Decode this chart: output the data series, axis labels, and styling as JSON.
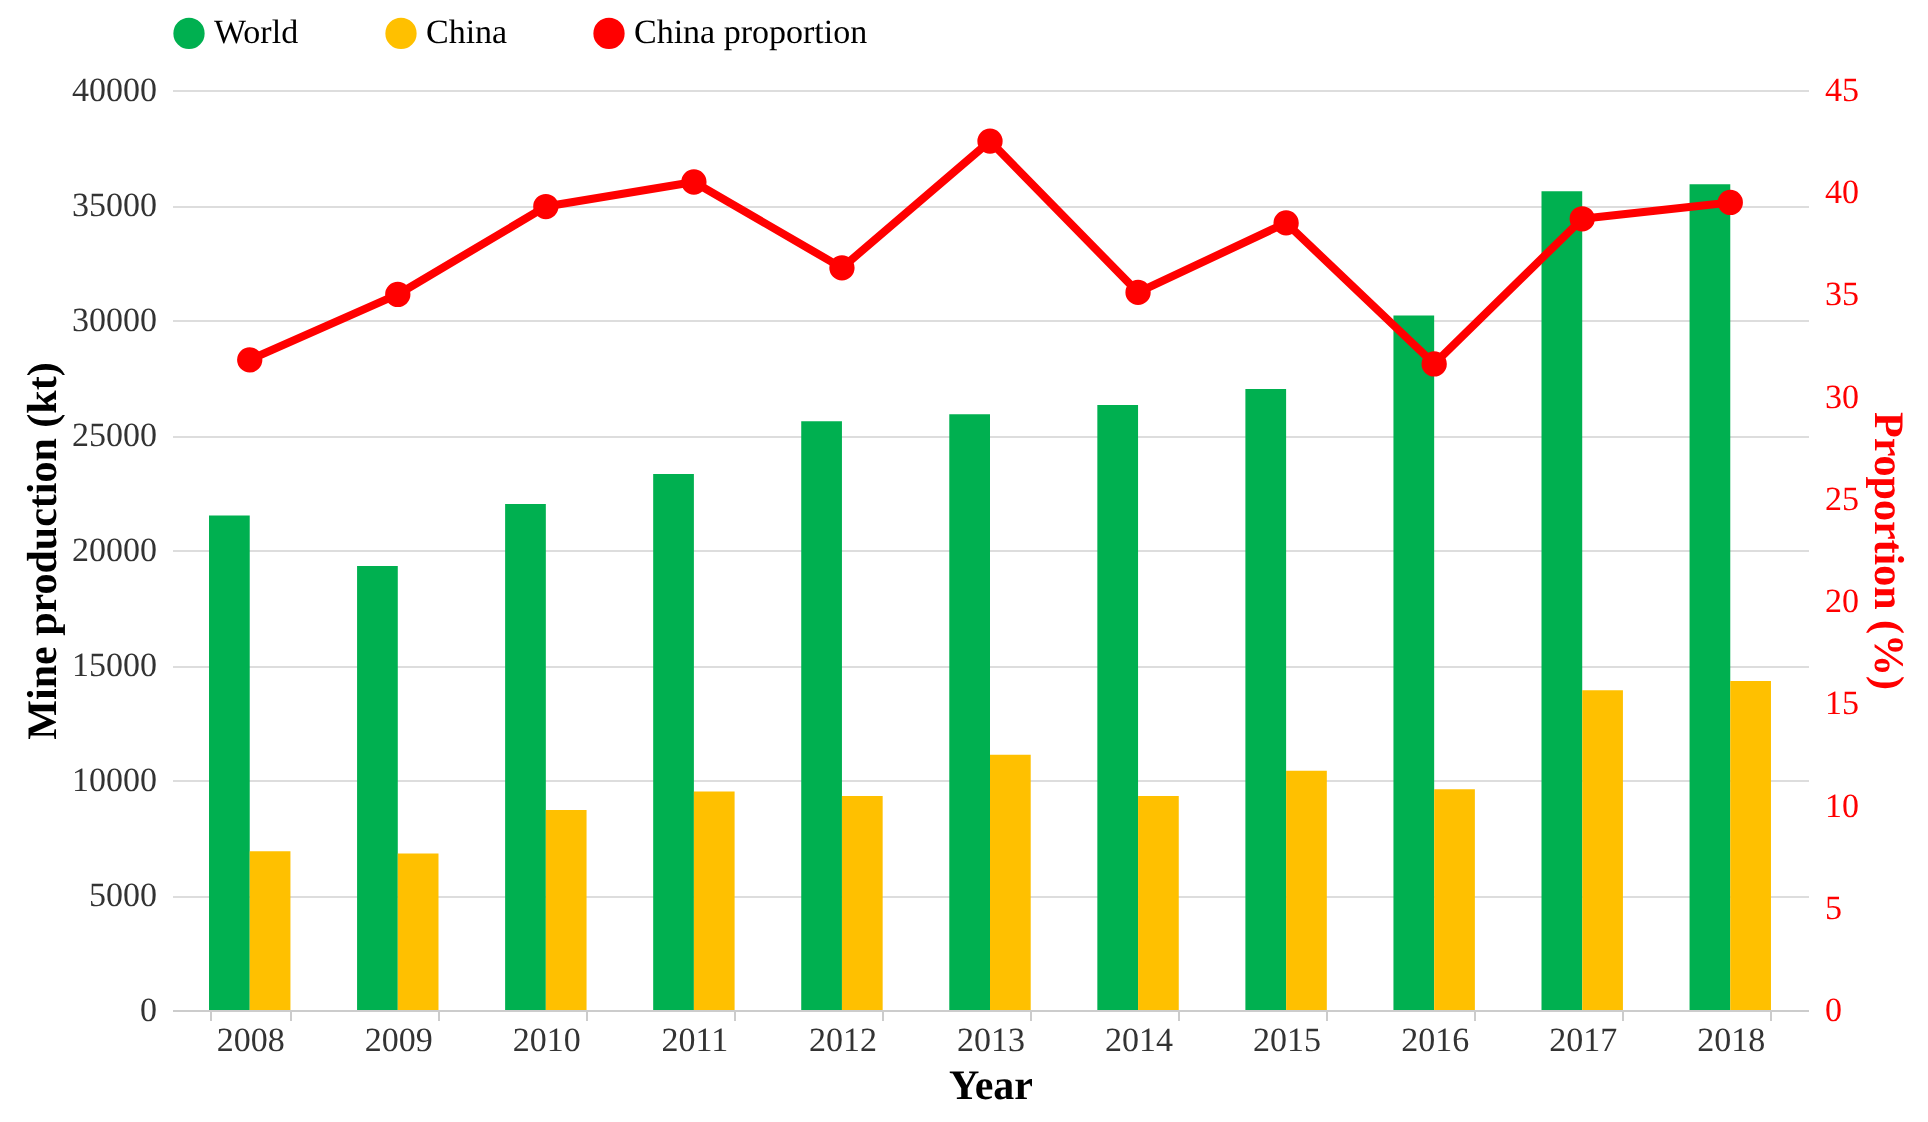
{
  "chart_data": {
    "type": "bar",
    "xlabel": "Year",
    "ylabel": "Mine production (kt)",
    "y2label": "Proportion (%)",
    "categories": [
      "2008",
      "2009",
      "2010",
      "2011",
      "2012",
      "2013",
      "2014",
      "2015",
      "2016",
      "2017",
      "2018"
    ],
    "series": [
      {
        "name": "World",
        "color": "#00b050",
        "values": [
          21500,
          19300,
          22000,
          23300,
          25600,
          25900,
          26300,
          27000,
          30200,
          35600,
          35900
        ]
      },
      {
        "name": "China",
        "color": "#ffc000",
        "values": [
          6900,
          6800,
          8700,
          9500,
          9300,
          11100,
          9300,
          10400,
          9600,
          13900,
          14300
        ]
      },
      {
        "name": "China proportion",
        "type": "line",
        "axis": "y2",
        "color": "#ff0000",
        "marker": "circle",
        "values": [
          31.8,
          35.0,
          39.3,
          40.5,
          36.3,
          42.5,
          35.1,
          38.5,
          31.6,
          38.7,
          39.5
        ]
      }
    ],
    "ylim": [
      0,
      40000
    ],
    "yticks": [
      0,
      5000,
      10000,
      15000,
      20000,
      25000,
      30000,
      35000,
      40000
    ],
    "y2lim": [
      0,
      45
    ],
    "y2ticks": [
      0,
      5,
      10,
      15,
      20,
      25,
      30,
      35,
      40,
      45
    ],
    "grid": "y",
    "legend": "top"
  }
}
